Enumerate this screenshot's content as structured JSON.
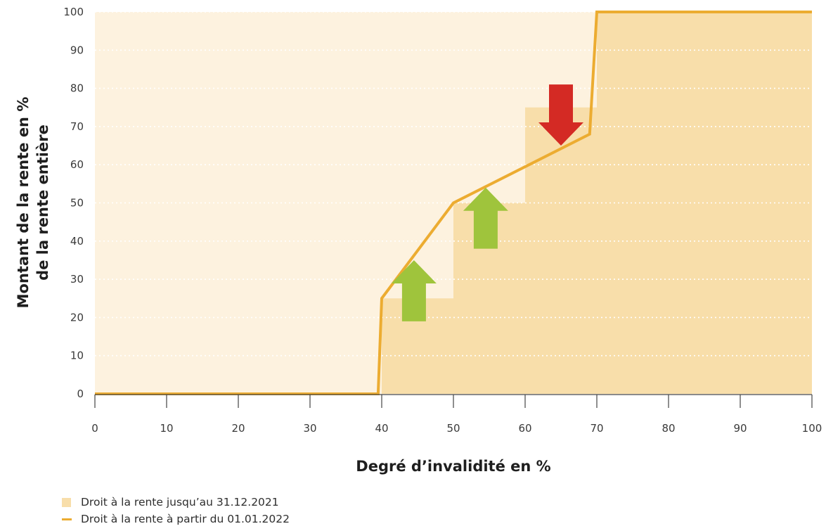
{
  "chart_data": {
    "type": "area",
    "xlabel": "Degré d’invalidité en %",
    "ylabel_lines": [
      "Montant de la rente en %",
      "de la rente entière"
    ],
    "xlim": [
      0,
      100
    ],
    "ylim": [
      0,
      100
    ],
    "x_ticks": [
      0,
      10,
      20,
      30,
      40,
      50,
      60,
      70,
      80,
      90,
      100
    ],
    "y_ticks": [
      0,
      10,
      20,
      30,
      40,
      50,
      60,
      70,
      80,
      90,
      100
    ],
    "grid": "horizontal-dotted",
    "legend_position": "bottom-left",
    "series": [
      {
        "name": "Droit à la rente jusqu’au 31.12.2021",
        "kind": "step-area",
        "color": "#f8deaa",
        "points": [
          {
            "x": 0,
            "y": 0
          },
          {
            "x": 40,
            "y": 0
          },
          {
            "x": 40,
            "y": 25
          },
          {
            "x": 50,
            "y": 25
          },
          {
            "x": 50,
            "y": 50
          },
          {
            "x": 60,
            "y": 50
          },
          {
            "x": 60,
            "y": 75
          },
          {
            "x": 70,
            "y": 75
          },
          {
            "x": 70,
            "y": 100
          },
          {
            "x": 100,
            "y": 100
          }
        ]
      },
      {
        "name": "Droit à la rente à partir du 01.01.2022",
        "kind": "line",
        "color": "#ecac31",
        "points": [
          {
            "x": 0,
            "y": 0
          },
          {
            "x": 39.5,
            "y": 0
          },
          {
            "x": 40,
            "y": 25
          },
          {
            "x": 50,
            "y": 50
          },
          {
            "x": 69,
            "y": 68
          },
          {
            "x": 70,
            "y": 100
          },
          {
            "x": 100,
            "y": 100
          }
        ]
      }
    ],
    "annotations": [
      {
        "type": "arrow-up",
        "x": 44.5,
        "y_from": 19,
        "y_to": 35,
        "color": "#9fc43c"
      },
      {
        "type": "arrow-up",
        "x": 54.5,
        "y_from": 38,
        "y_to": 54,
        "color": "#9fc43c"
      },
      {
        "type": "arrow-down",
        "x": 65,
        "y_from": 81,
        "y_to": 65,
        "color": "#d42a24"
      }
    ]
  },
  "colors": {
    "plot_background": "#fdf2df",
    "grid": "#ffffff",
    "axis": "#444444"
  }
}
